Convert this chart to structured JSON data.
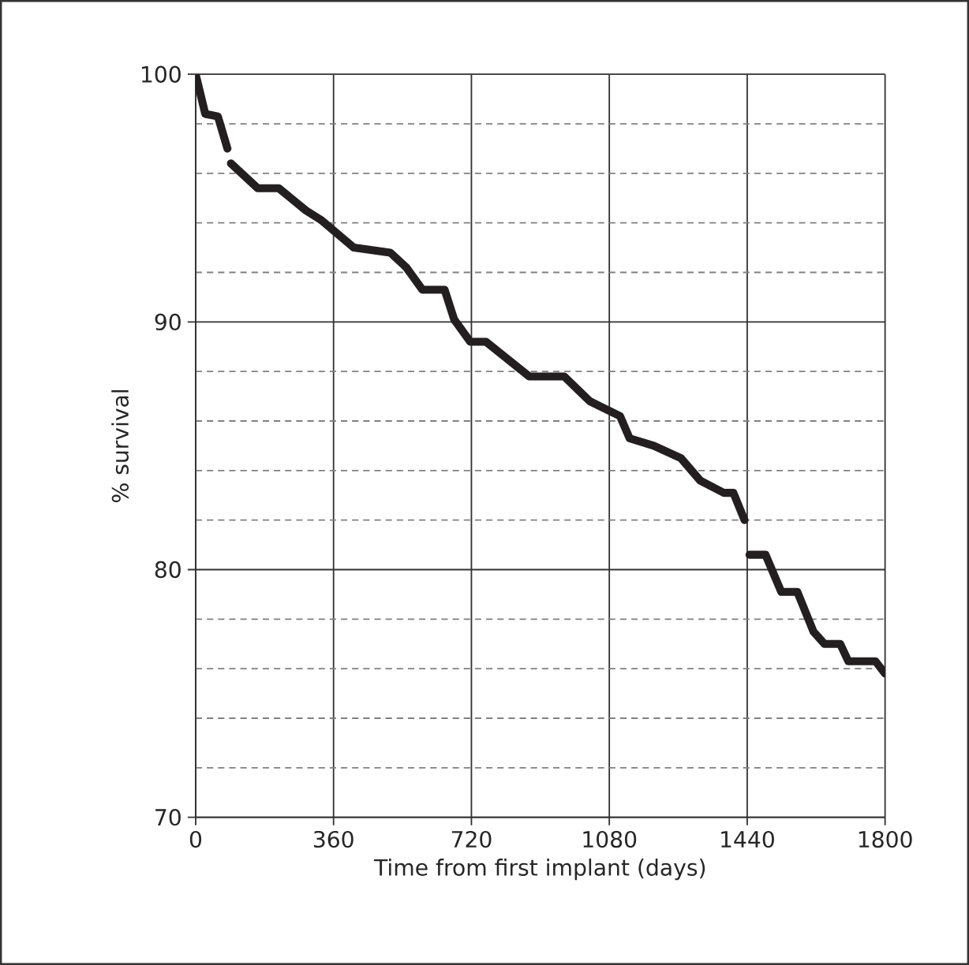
{
  "chart_data": {
    "type": "line",
    "xlabel": "Time from first implant (days)",
    "ylabel": "% survival",
    "x": [
      0,
      25,
      58,
      83,
      null,
      92,
      162,
      217,
      288,
      329,
      413,
      508,
      550,
      592,
      650,
      675,
      717,
      758,
      871,
      962,
      1029,
      1108,
      1133,
      1196,
      1267,
      1317,
      1379,
      1404,
      1433,
      null,
      1446,
      1488,
      1529,
      1571,
      1613,
      1642,
      1683,
      1704,
      1775,
      1800
    ],
    "series": [
      {
        "color": "#231f20",
        "values": [
          100,
          98.4,
          98.3,
          97.0,
          null,
          96.4,
          95.4,
          95.4,
          94.5,
          94.1,
          93.0,
          92.8,
          92.2,
          91.3,
          91.3,
          90.1,
          89.2,
          89.2,
          87.8,
          87.8,
          86.8,
          86.2,
          85.3,
          85.0,
          84.5,
          83.6,
          83.1,
          83.1,
          82.0,
          null,
          80.6,
          80.6,
          79.1,
          79.1,
          77.5,
          77.0,
          77.0,
          76.3,
          76.3,
          75.8
        ]
      }
    ],
    "xlim": [
      0,
      1800
    ],
    "xticks": [
      0,
      360,
      720,
      1080,
      1440,
      1800
    ],
    "ylim": [
      70,
      100
    ],
    "yticks": [
      70,
      {
        "value": 72,
        "label": null
      },
      {
        "value": 74,
        "label": null
      },
      {
        "value": 76,
        "label": null
      },
      {
        "value": 78,
        "label": null
      },
      80,
      {
        "value": 82,
        "label": null
      },
      {
        "value": 84,
        "label": null
      },
      {
        "value": 86,
        "label": null
      },
      {
        "value": 88,
        "label": null
      },
      90,
      {
        "value": 92,
        "label": null
      },
      {
        "value": 94,
        "label": null
      },
      {
        "value": 96,
        "label": null
      },
      {
        "value": 98,
        "label": null
      },
      100
    ],
    "grid": true,
    "marker": "none",
    "line_style": "solid"
  }
}
